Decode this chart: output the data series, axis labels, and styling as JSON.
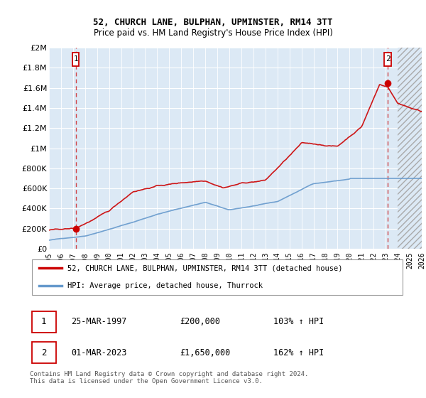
{
  "title": "52, CHURCH LANE, BULPHAN, UPMINSTER, RM14 3TT",
  "subtitle": "Price paid vs. HM Land Registry's House Price Index (HPI)",
  "legend_line1": "52, CHURCH LANE, BULPHAN, UPMINSTER, RM14 3TT (detached house)",
  "legend_line2": "HPI: Average price, detached house, Thurrock",
  "annotation1_date": "25-MAR-1997",
  "annotation1_price": "£200,000",
  "annotation1_hpi": "103% ↑ HPI",
  "annotation2_date": "01-MAR-2023",
  "annotation2_price": "£1,650,000",
  "annotation2_hpi": "162% ↑ HPI",
  "footer": "Contains HM Land Registry data © Crown copyright and database right 2024.\nThis data is licensed under the Open Government Licence v3.0.",
  "price_color": "#cc0000",
  "hpi_color": "#6699cc",
  "annotation_box_color": "#cc0000",
  "plot_bg_color": "#dce9f5",
  "ylim": [
    0,
    2000000
  ],
  "yticks": [
    0,
    200000,
    400000,
    600000,
    800000,
    1000000,
    1200000,
    1400000,
    1600000,
    1800000,
    2000000
  ],
  "sale1_x": 1997.23,
  "sale1_y": 200000,
  "sale2_x": 2023.17,
  "sale2_y": 1650000,
  "xmin": 1995,
  "xmax": 2026,
  "hatch_start": 2024.0,
  "xtick_years": [
    1995,
    1996,
    1997,
    1998,
    1999,
    2000,
    2001,
    2002,
    2003,
    2004,
    2005,
    2006,
    2007,
    2008,
    2009,
    2010,
    2011,
    2012,
    2013,
    2014,
    2015,
    2016,
    2017,
    2018,
    2019,
    2020,
    2021,
    2022,
    2023,
    2024,
    2025,
    2026
  ]
}
